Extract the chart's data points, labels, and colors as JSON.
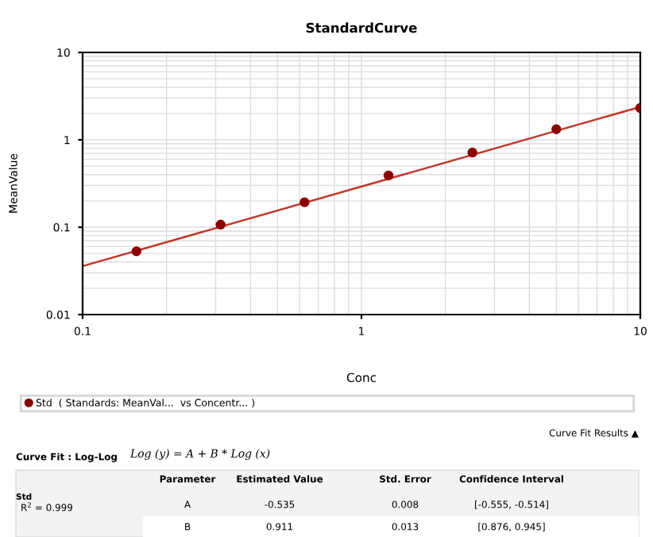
{
  "chart_data": {
    "type": "scatter",
    "title": "StandardCurve",
    "xlabel": "Conc",
    "ylabel": "MeanValue",
    "log": "xy",
    "xlim": [
      0.1,
      10
    ],
    "ylim": [
      0.01,
      10
    ],
    "xticks": [
      0.1,
      1,
      10
    ],
    "yticks": [
      0.01,
      0.1,
      1,
      10
    ],
    "grid": true,
    "legend": "bottom",
    "marker": "circle",
    "series": [
      {
        "name": "Std  ( Standards: MeanVal...  vs Concentr... )",
        "color": "#8b0000",
        "x": [
          0.156,
          0.3125,
          0.625,
          1.25,
          2.5,
          5,
          10
        ],
        "values": [
          0.053,
          0.107,
          0.193,
          0.39,
          0.715,
          1.32,
          2.31
        ]
      },
      {
        "type": "line",
        "color": "#c0392b",
        "x": [
          0.1,
          10
        ],
        "values": [
          0.0358,
          2.38
        ],
        "marker": "none"
      }
    ],
    "annotations": [
      "Curve Fit Results ▲",
      "Curve Fit : Log-Log",
      "Log (y) = A + B * Log (x)",
      "Parameter",
      "Estimated Value",
      "Std. Error",
      "Confidence Interval",
      "Std",
      "R$^{2}$ = 0.999",
      "A",
      "-0.535",
      "0.008",
      "[-0.555, -0.514]",
      "B",
      "0.911",
      "0.013",
      "[0.876, 0.945]"
    ]
  }
}
